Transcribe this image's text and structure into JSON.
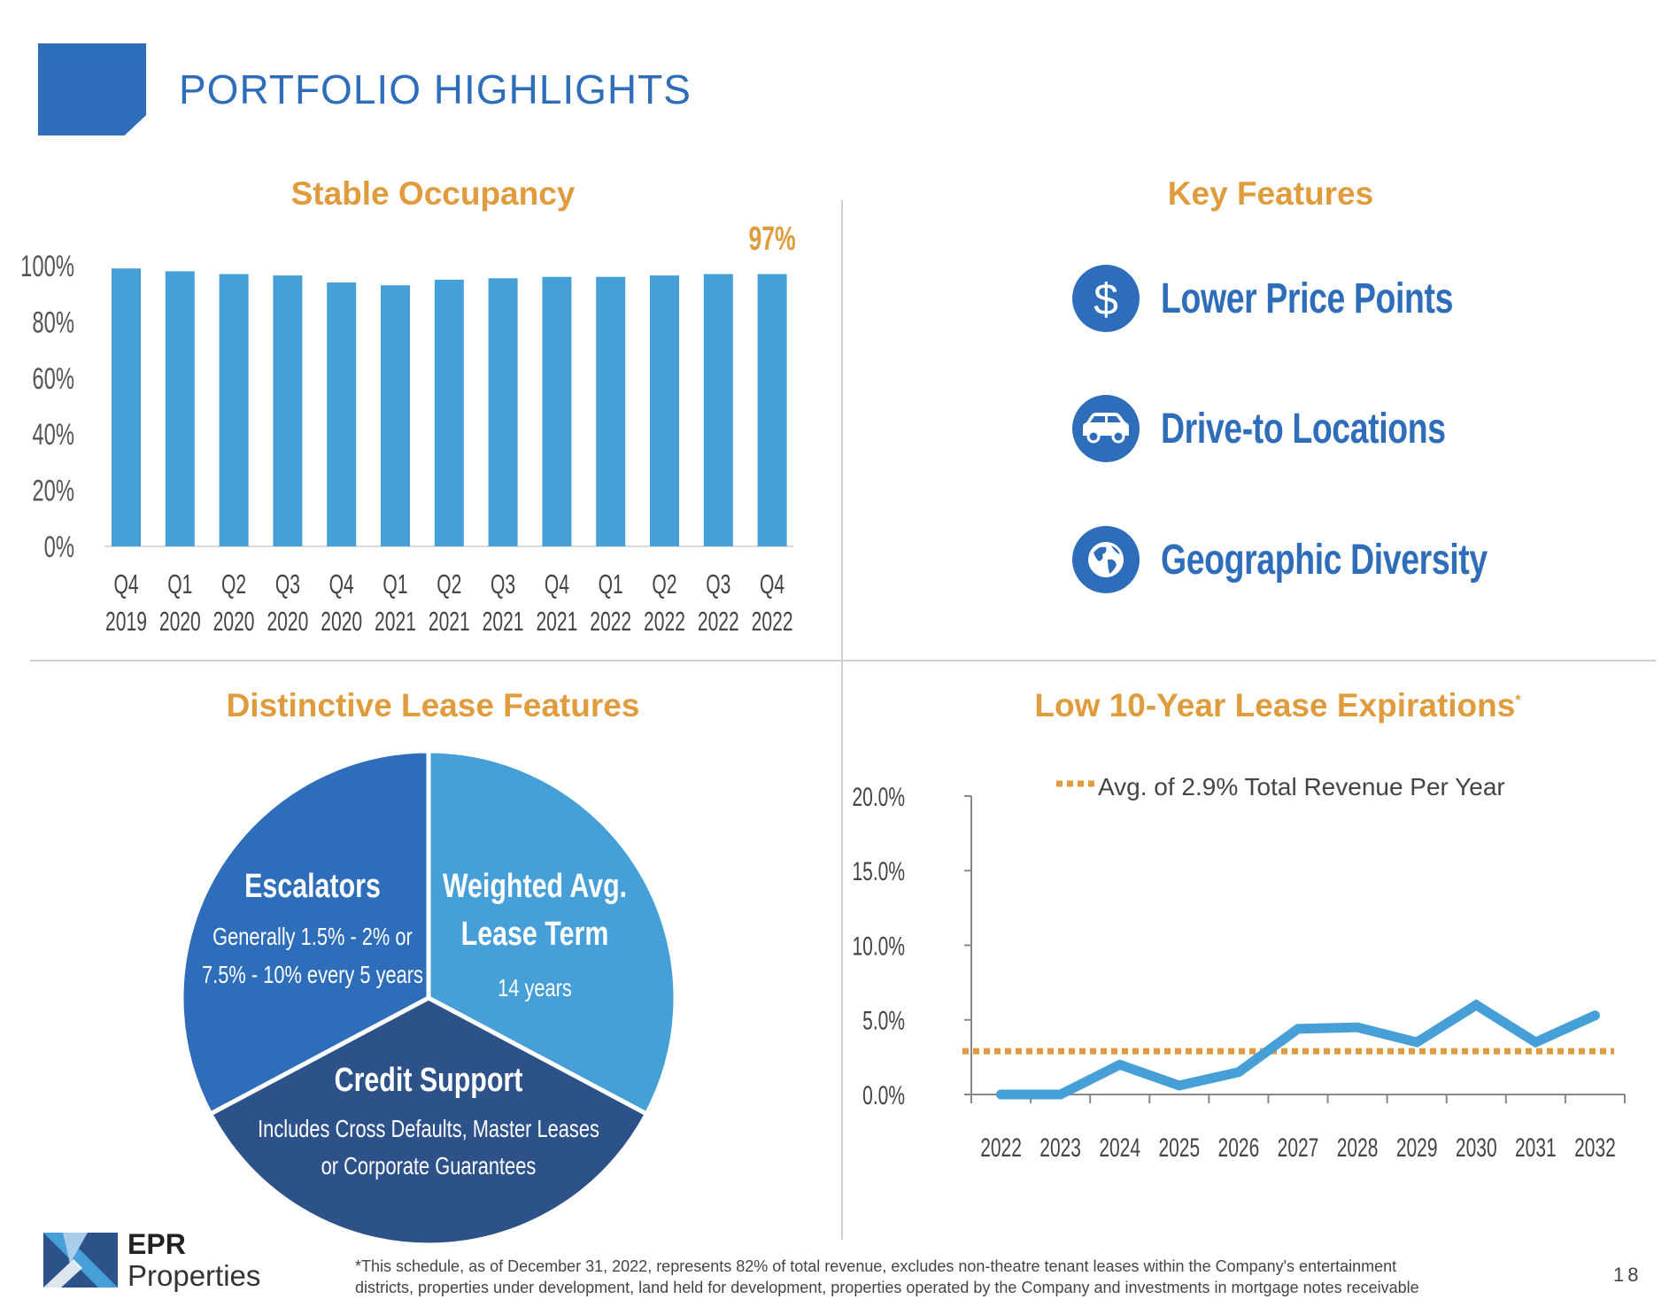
{
  "header": {
    "title": "PORTFOLIO HIGHLIGHTS"
  },
  "sections": {
    "occupancy": "Stable Occupancy",
    "key_features": "Key Features",
    "lease_features": "Distinctive Lease Features",
    "expirations": "Low 10-Year Lease Expirations",
    "expirations_mark": "*"
  },
  "key_features": [
    {
      "label": "Lower Price Points",
      "icon": "dollar-icon"
    },
    {
      "label": "Drive-to Locations",
      "icon": "car-icon"
    },
    {
      "label": "Geographic Diversity",
      "icon": "globe-icon"
    }
  ],
  "colors": {
    "brand": "#2e6dba",
    "accent": "#e09b3d",
    "bar": "#479fd8",
    "pie": [
      "#2e6dba",
      "#479fd8",
      "#2d5189"
    ]
  },
  "chart_data": [
    {
      "type": "bar",
      "title": "Stable Occupancy",
      "categories": [
        [
          "Q4",
          "2019"
        ],
        [
          "Q1",
          "2020"
        ],
        [
          "Q2",
          "2020"
        ],
        [
          "Q3",
          "2020"
        ],
        [
          "Q4",
          "2020"
        ],
        [
          "Q1",
          "2021"
        ],
        [
          "Q2",
          "2021"
        ],
        [
          "Q3",
          "2021"
        ],
        [
          "Q4",
          "2021"
        ],
        [
          "Q1",
          "2022"
        ],
        [
          "Q2",
          "2022"
        ],
        [
          "Q3",
          "2022"
        ],
        [
          "Q4",
          "2022"
        ]
      ],
      "values": [
        99,
        98,
        97,
        96.5,
        94,
        93,
        95,
        95.5,
        96,
        96,
        96.5,
        97,
        97
      ],
      "ylim": [
        0,
        100
      ],
      "yticks": [
        "0%",
        "20%",
        "40%",
        "60%",
        "80%",
        "100%"
      ],
      "annotation": "97%",
      "grid": false
    },
    {
      "type": "pie",
      "title": "Distinctive Lease Features",
      "slices": [
        {
          "title": "Escalators",
          "detail": [
            "Generally 1.5% - 2% or",
            "7.5% - 10% every 5 years"
          ],
          "value": 33.3
        },
        {
          "title": "Weighted Avg.",
          "title2": "Lease Term",
          "detail": [
            "14 years"
          ],
          "value": 33.3
        },
        {
          "title": "Credit Support",
          "detail": [
            "Includes Cross Defaults, Master Leases",
            "or Corporate Guarantees"
          ],
          "value": 33.3
        }
      ]
    },
    {
      "type": "line",
      "title": "Low 10-Year Lease Expirations",
      "x": [
        "2022",
        "2023",
        "2024",
        "2025",
        "2026",
        "2027",
        "2028",
        "2029",
        "2030",
        "2031",
        "2032"
      ],
      "series": [
        {
          "values": [
            0.0,
            0.0,
            2.0,
            0.6,
            1.5,
            4.4,
            4.5,
            3.5,
            6.0,
            3.5,
            5.3
          ]
        }
      ],
      "reference": {
        "value": 2.9,
        "label": "Avg. of 2.9% Total Revenue Per Year"
      },
      "ylim": [
        0,
        20
      ],
      "yticks": [
        "0.0%",
        "5.0%",
        "10.0%",
        "15.0%",
        "20.0%"
      ],
      "grid": false,
      "legend": "top"
    }
  ],
  "footer": {
    "logo_line1": "EPR",
    "logo_line2": "Properties",
    "footnote": "*This schedule, as of December 31, 2022, represents 82% of total revenue, excludes non-theatre tenant leases within the Company's entertainment districts, properties under development, land held for development, properties operated by the Company and investments in mortgage notes receivable",
    "page_number": "18"
  }
}
